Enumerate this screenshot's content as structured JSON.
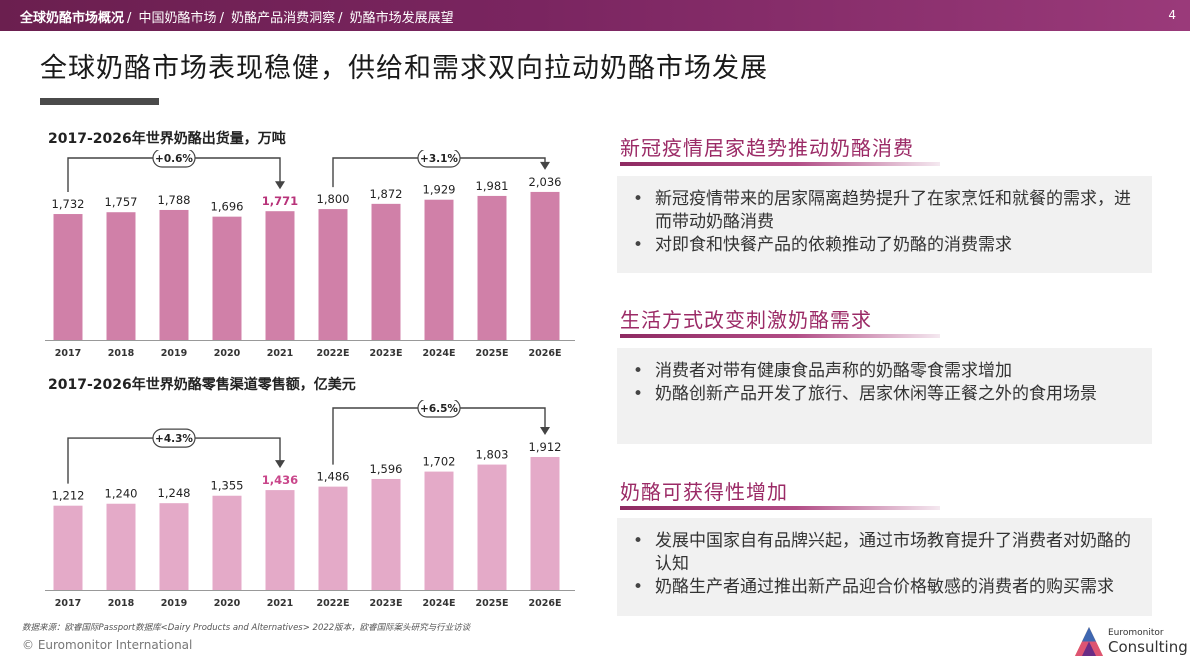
{
  "header": {
    "breadcrumbs": [
      {
        "label": "全球奶酪市场概况",
        "active": true
      },
      {
        "label": "中国奶酪市场",
        "active": false
      },
      {
        "label": "奶酪产品消费洞察",
        "active": false
      },
      {
        "label": "奶酪市场发展展望",
        "active": false
      }
    ],
    "page_number": "4"
  },
  "title": "全球奶酪市场表现稳健，供给和需求双向拉动奶酪市场发展",
  "charts": {
    "volume_title": "2017-2026年世界奶酪出货量，万吨",
    "retail_title": "2017-2026年世界奶酪零售渠道零售额，亿美元"
  },
  "chart_data": [
    {
      "type": "bar",
      "title": "2017-2026年世界奶酪出货量，万吨",
      "categories": [
        "2017",
        "2018",
        "2019",
        "2020",
        "2021",
        "2022E",
        "2023E",
        "2024E",
        "2025E",
        "2026E"
      ],
      "values": [
        1732,
        1757,
        1788,
        1696,
        1771,
        1800,
        1872,
        1929,
        1981,
        2036
      ],
      "value_labels": [
        "1,732",
        "1,757",
        "1,788",
        "1,696",
        "1,771",
        "1,800",
        "1,872",
        "1,929",
        "1,981",
        "2,036"
      ],
      "highlight_index": 4,
      "bar_color": "#d080a8",
      "highlight_label_color": "#b8337a",
      "ylim": [
        0,
        2200
      ],
      "annotations": [
        {
          "label": "+0.6%",
          "from": 0,
          "to": 4
        },
        {
          "label": "+3.1%",
          "from": 5,
          "to": 9
        }
      ]
    },
    {
      "type": "bar",
      "title": "2017-2026年世界奶酪零售渠道零售额，亿美元",
      "categories": [
        "2017",
        "2018",
        "2019",
        "2020",
        "2021",
        "2022E",
        "2023E",
        "2024E",
        "2025E",
        "2026E"
      ],
      "values": [
        1212,
        1240,
        1248,
        1355,
        1436,
        1486,
        1596,
        1702,
        1803,
        1912
      ],
      "value_labels": [
        "1,212",
        "1,240",
        "1,248",
        "1,355",
        "1,436",
        "1,486",
        "1,596",
        "1,702",
        "1,803",
        "1,912"
      ],
      "highlight_index": 4,
      "bar_color": "#e4aac8",
      "highlight_label_color": "#c9458a",
      "ylim": [
        0,
        2300
      ],
      "annotations": [
        {
          "label": "+4.3%",
          "from": 0,
          "to": 4
        },
        {
          "label": "+6.5%",
          "from": 5,
          "to": 9
        }
      ]
    }
  ],
  "sections": [
    {
      "title": "新冠疫情居家趋势推动奶酪消费",
      "bullets": [
        "新冠疫情带来的居家隔离趋势提升了在家烹饪和就餐的需求，进而带动奶酪消费",
        "对即食和快餐产品的依赖推动了奶酪的消费需求"
      ]
    },
    {
      "title": "生活方式改变刺激奶酪需求",
      "bullets": [
        "消费者对带有健康食品声称的奶酪零食需求增加",
        "奶酪创新产品开发了旅行、居家休闲等正餐之外的食用场景"
      ]
    },
    {
      "title": "奶酪可获得性增加",
      "bullets": [
        "发展中国家自有品牌兴起，通过市场教育提升了消费者对奶酪的认知",
        "奶酪生产者通过推出新产品迎合价格敏感的消费者的购买需求"
      ]
    }
  ],
  "footer": {
    "source": "数据来源：欧睿国际Passport数据库<Dairy Products and Alternatives> 2022版本，欧睿国际案头研究与行业访谈",
    "copyright": "© Euromonitor International",
    "logo_top": "Euromonitor",
    "logo_bottom": "Consulting"
  },
  "colors": {
    "banner": "#7a2560",
    "accent": "#9b2a66"
  }
}
